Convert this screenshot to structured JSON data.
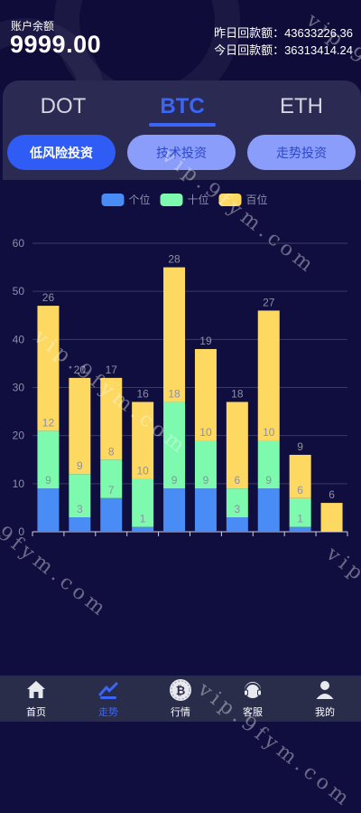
{
  "account": {
    "balance_label": "账户余额",
    "balance_value": "9999.00",
    "yesterday_label": "昨日回款额：",
    "yesterday_value": "43633226.36",
    "today_label": "今日回款额：",
    "today_value": "36313414.24"
  },
  "tabs": [
    {
      "label": "DOT",
      "active": false
    },
    {
      "label": "BTC",
      "active": true
    },
    {
      "label": "ETH",
      "active": false
    }
  ],
  "strategies": [
    {
      "label": "低风险投资",
      "active": true
    },
    {
      "label": "技术投资",
      "active": false
    },
    {
      "label": "走势投资",
      "active": false
    }
  ],
  "chart_data": {
    "type": "bar",
    "stacked": true,
    "ylim": [
      0,
      60
    ],
    "yticks": [
      0,
      10,
      20,
      30,
      40,
      50,
      60
    ],
    "grid": true,
    "legend_position": "top-center",
    "categories": [
      "",
      "",
      "",
      "",
      "",
      "",
      "",
      "",
      "",
      ""
    ],
    "series": [
      {
        "name": "个位",
        "color": "#4a8cf5",
        "values": [
          9,
          3,
          7,
          1,
          9,
          9,
          3,
          9,
          1,
          0
        ]
      },
      {
        "name": "十位",
        "color": "#7dfaad",
        "values": [
          12,
          9,
          8,
          10,
          18,
          10,
          6,
          10,
          6,
          0
        ]
      },
      {
        "name": "百位",
        "color": "#fdd962",
        "values": [
          26,
          20,
          17,
          16,
          28,
          19,
          18,
          27,
          9,
          6
        ]
      }
    ]
  },
  "nav": [
    {
      "label": "首页",
      "icon": "home-icon",
      "active": false
    },
    {
      "label": "走势",
      "icon": "trend-icon",
      "active": true
    },
    {
      "label": "行情",
      "icon": "bitcoin-icon",
      "active": false
    },
    {
      "label": "客服",
      "icon": "headset-icon",
      "active": false
    },
    {
      "label": "我的",
      "icon": "user-icon",
      "active": false
    }
  ],
  "watermark": "vip.9fym.com"
}
